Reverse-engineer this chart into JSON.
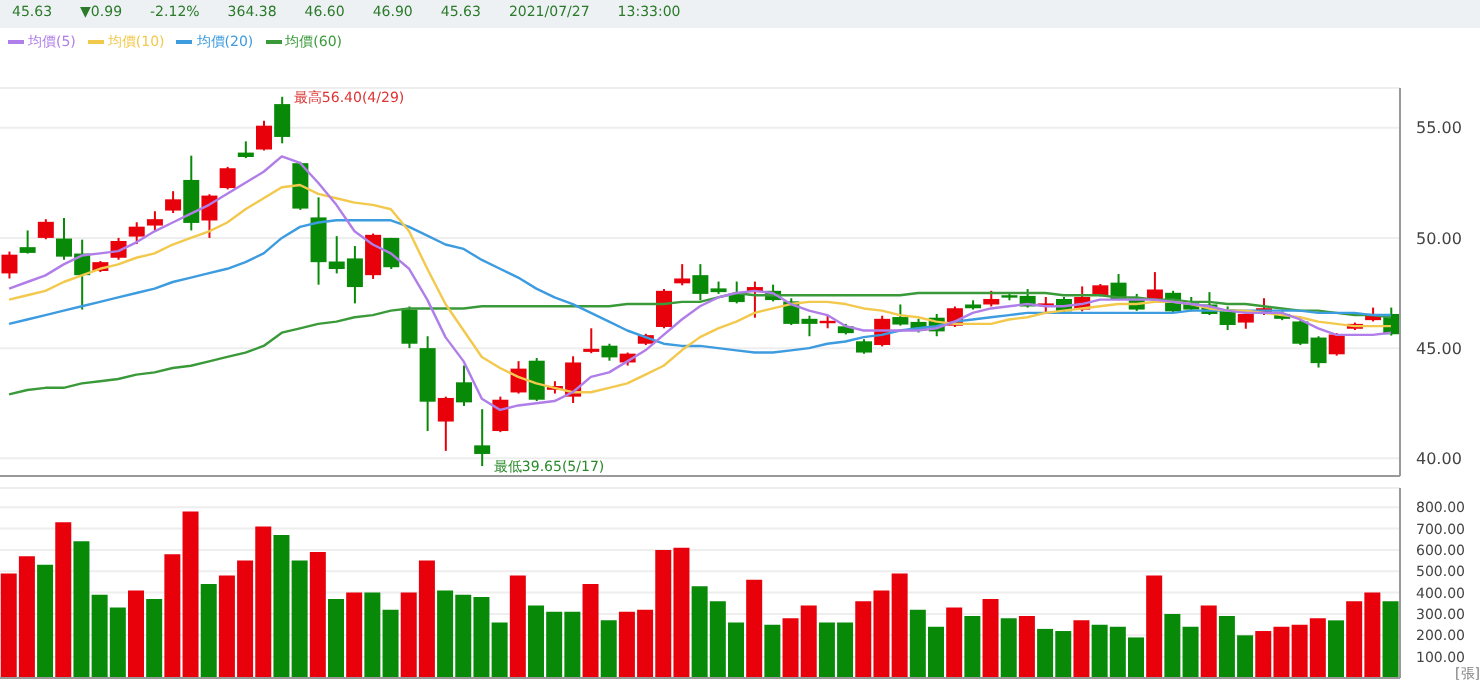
{
  "chart_data": [
    {
      "type": "candlestick",
      "categories": [
        null,
        null,
        null,
        null,
        null,
        null,
        null,
        null,
        null,
        null,
        null,
        null,
        null,
        null,
        null,
        null,
        null,
        null,
        null,
        null,
        null,
        null,
        null,
        null,
        null,
        null,
        null,
        null,
        null,
        null,
        null,
        null,
        null,
        null,
        null,
        null,
        null,
        null,
        null,
        null,
        null,
        null,
        null,
        null,
        null,
        null,
        null,
        null,
        null,
        null,
        null,
        null,
        null,
        null,
        null,
        null,
        null,
        null,
        null,
        null,
        null,
        null,
        null,
        null,
        null,
        null,
        null,
        null,
        null,
        null,
        null,
        null,
        null,
        null,
        null,
        null,
        null
      ],
      "ohlc": [
        [
          48.39,
          49.38,
          48.16,
          49.24
        ],
        [
          49.58,
          50.34,
          49.29,
          49.32
        ],
        [
          50.0,
          50.85,
          49.94,
          50.73
        ],
        [
          49.97,
          50.9,
          49.01,
          49.15
        ],
        [
          49.29,
          49.92,
          46.75,
          48.31
        ],
        [
          48.5,
          48.95,
          48.45,
          48.9
        ],
        [
          49.1,
          50.0,
          49.01,
          49.86
        ],
        [
          50.06,
          50.71,
          49.72,
          50.51
        ],
        [
          50.56,
          51.21,
          50.34,
          50.85
        ],
        [
          51.24,
          52.12,
          51.13,
          51.75
        ],
        [
          52.63,
          53.73,
          50.34,
          50.68
        ],
        [
          50.79,
          51.98,
          50.0,
          51.92
        ],
        [
          52.26,
          53.22,
          52.2,
          53.16
        ],
        [
          53.87,
          54.38,
          53.62,
          53.67
        ],
        [
          54.01,
          55.31,
          53.96,
          55.09
        ],
        [
          56.07,
          56.4,
          54.29,
          54.58
        ],
        [
          53.39,
          53.45,
          51.27,
          51.33
        ],
        [
          50.93,
          51.84,
          47.88,
          48.9
        ],
        [
          48.93,
          50.08,
          48.39,
          48.59
        ],
        [
          49.07,
          49.63,
          47.03,
          47.77
        ],
        [
          48.31,
          50.2,
          48.14,
          50.14
        ],
        [
          50.0,
          50.0,
          48.59,
          48.67
        ],
        [
          46.75,
          46.89,
          45.0,
          45.2
        ],
        [
          45.0,
          45.54,
          41.24,
          42.57
        ],
        [
          41.67,
          42.8,
          40.34,
          42.74
        ],
        [
          43.45,
          44.21,
          42.37,
          42.54
        ],
        [
          40.59,
          42.23,
          39.65,
          40.2
        ],
        [
          41.24,
          42.8,
          41.19,
          42.66
        ],
        [
          42.99,
          44.41,
          42.94,
          44.07
        ],
        [
          44.43,
          44.55,
          42.6,
          42.66
        ],
        [
          43.11,
          43.5,
          42.94,
          43.28
        ],
        [
          42.8,
          44.63,
          42.51,
          44.35
        ],
        [
          44.83,
          45.9,
          44.77,
          44.97
        ],
        [
          45.11,
          45.2,
          44.43,
          44.58
        ],
        [
          44.35,
          44.8,
          44.21,
          44.75
        ],
        [
          45.2,
          45.65,
          45.14,
          45.59
        ],
        [
          45.96,
          47.68,
          45.9,
          47.6
        ],
        [
          47.94,
          48.81,
          47.85,
          48.16
        ],
        [
          48.31,
          48.81,
          47.17,
          47.46
        ],
        [
          47.71,
          48.02,
          47.46,
          47.54
        ],
        [
          47.46,
          48.02,
          47.03,
          47.09
        ],
        [
          47.54,
          48.02,
          46.38,
          47.77
        ],
        [
          47.6,
          47.88,
          47.12,
          47.18
        ],
        [
          47.12,
          47.26,
          46.05,
          46.1
        ],
        [
          46.33,
          46.47,
          45.54,
          46.1
        ],
        [
          46.13,
          46.47,
          45.9,
          46.24
        ],
        [
          45.99,
          46.1,
          45.62,
          45.68
        ],
        [
          45.31,
          45.4,
          44.75,
          44.8
        ],
        [
          45.14,
          46.47,
          45.08,
          46.33
        ],
        [
          46.41,
          46.98,
          46.02,
          46.07
        ],
        [
          46.19,
          46.33,
          45.71,
          45.79
        ],
        [
          46.38,
          46.55,
          45.54,
          45.76
        ],
        [
          46.02,
          46.89,
          45.96,
          46.81
        ],
        [
          46.98,
          47.17,
          46.75,
          46.81
        ],
        [
          46.98,
          47.6,
          46.89,
          47.23
        ],
        [
          47.4,
          47.51,
          47.17,
          47.29
        ],
        [
          47.37,
          47.68,
          46.84,
          46.89
        ],
        [
          46.98,
          47.32,
          46.61,
          47.03
        ],
        [
          47.23,
          47.32,
          46.61,
          46.67
        ],
        [
          46.75,
          47.8,
          46.67,
          47.32
        ],
        [
          47.4,
          47.91,
          47.35,
          47.85
        ],
        [
          47.97,
          48.36,
          47.17,
          47.23
        ],
        [
          47.26,
          47.46,
          46.69,
          46.75
        ],
        [
          47.23,
          48.45,
          47.17,
          47.66
        ],
        [
          47.51,
          47.6,
          46.61,
          46.67
        ],
        [
          47.03,
          47.32,
          46.67,
          46.75
        ],
        [
          46.98,
          47.54,
          46.5,
          46.55
        ],
        [
          46.75,
          46.89,
          45.82,
          46.05
        ],
        [
          46.16,
          46.69,
          45.88,
          46.55
        ],
        [
          46.55,
          47.26,
          46.5,
          46.81
        ],
        [
          46.55,
          46.67,
          46.27,
          46.33
        ],
        [
          46.21,
          46.27,
          45.14,
          45.2
        ],
        [
          45.48,
          45.54,
          44.12,
          44.32
        ],
        [
          44.72,
          45.68,
          44.66,
          45.62
        ],
        [
          45.88,
          46.16,
          45.82,
          46.1
        ],
        [
          46.27,
          46.84,
          46.21,
          46.55
        ],
        [
          46.55,
          46.84,
          45.57,
          45.63
        ]
      ],
      "series": [
        {
          "name": "均價(5)",
          "type": "line",
          "color": "#b07ee8",
          "values": [
            47.7,
            48.0,
            48.3,
            48.8,
            49.2,
            49.3,
            49.4,
            49.8,
            50.3,
            50.7,
            51.1,
            51.5,
            52.0,
            52.5,
            53.0,
            53.7,
            53.4,
            52.5,
            51.5,
            50.3,
            49.7,
            49.3,
            48.6,
            47.2,
            45.5,
            44.4,
            42.7,
            42.2,
            42.4,
            42.5,
            42.6,
            43.0,
            43.7,
            43.9,
            44.4,
            44.9,
            45.6,
            46.3,
            46.9,
            47.3,
            47.5,
            47.6,
            47.5,
            47.0,
            46.7,
            46.5,
            46.0,
            45.8,
            45.8,
            45.8,
            45.8,
            45.9,
            46.2,
            46.6,
            46.8,
            46.9,
            47.0,
            46.9,
            46.9,
            47.0,
            47.2,
            47.2,
            47.2,
            47.2,
            47.1,
            47.0,
            46.9,
            46.7,
            46.6,
            46.6,
            46.6,
            46.3,
            45.9,
            45.6,
            45.6,
            45.6,
            45.7
          ]
        },
        {
          "name": "均價(10)",
          "type": "line",
          "color": "#f2c94c",
          "values": [
            47.2,
            47.4,
            47.6,
            48.0,
            48.3,
            48.6,
            48.8,
            49.1,
            49.3,
            49.7,
            50.0,
            50.3,
            50.7,
            51.3,
            51.8,
            52.3,
            52.4,
            52.0,
            51.8,
            51.6,
            51.5,
            51.3,
            50.3,
            48.6,
            47.0,
            45.8,
            44.6,
            44.1,
            43.7,
            43.4,
            43.2,
            43.0,
            43.0,
            43.2,
            43.4,
            43.8,
            44.2,
            44.9,
            45.5,
            45.9,
            46.2,
            46.6,
            46.8,
            47.0,
            47.1,
            47.1,
            47.0,
            46.8,
            46.7,
            46.5,
            46.4,
            46.2,
            46.1,
            46.1,
            46.1,
            46.3,
            46.4,
            46.6,
            46.7,
            46.8,
            46.9,
            47.0,
            47.0,
            47.1,
            47.1,
            47.0,
            46.8,
            46.7,
            46.7,
            46.6,
            46.5,
            46.4,
            46.2,
            46.1,
            46.0,
            46.0,
            46.0
          ]
        },
        {
          "name": "均價(20)",
          "type": "line",
          "color": "#3d9be0",
          "values": [
            46.1,
            46.3,
            46.5,
            46.7,
            46.9,
            47.1,
            47.3,
            47.5,
            47.7,
            48.0,
            48.2,
            48.4,
            48.6,
            48.9,
            49.3,
            50.0,
            50.5,
            50.7,
            50.8,
            50.8,
            50.8,
            50.8,
            50.5,
            50.1,
            49.7,
            49.5,
            49.0,
            48.6,
            48.2,
            47.7,
            47.3,
            47.0,
            46.6,
            46.2,
            45.8,
            45.5,
            45.2,
            45.1,
            45.1,
            45.0,
            44.9,
            44.8,
            44.8,
            44.9,
            45.0,
            45.2,
            45.3,
            45.5,
            45.6,
            45.8,
            45.9,
            46.0,
            46.2,
            46.3,
            46.4,
            46.5,
            46.6,
            46.6,
            46.6,
            46.6,
            46.6,
            46.6,
            46.6,
            46.6,
            46.6,
            46.7,
            46.7,
            46.7,
            46.7,
            46.7,
            46.7,
            46.7,
            46.6,
            46.6,
            46.6,
            46.5,
            46.5
          ]
        },
        {
          "name": "均價(60)",
          "type": "line",
          "color": "#3a9a3a",
          "values": [
            42.9,
            43.1,
            43.2,
            43.2,
            43.4,
            43.5,
            43.6,
            43.8,
            43.9,
            44.1,
            44.2,
            44.4,
            44.6,
            44.8,
            45.1,
            45.7,
            45.9,
            46.1,
            46.2,
            46.4,
            46.5,
            46.7,
            46.8,
            46.8,
            46.8,
            46.8,
            46.9,
            46.9,
            46.9,
            46.9,
            46.9,
            46.9,
            46.9,
            46.9,
            47.0,
            47.0,
            47.0,
            47.1,
            47.1,
            47.3,
            47.5,
            47.4,
            47.4,
            47.4,
            47.4,
            47.4,
            47.4,
            47.4,
            47.4,
            47.4,
            47.5,
            47.5,
            47.5,
            47.5,
            47.5,
            47.5,
            47.5,
            47.5,
            47.4,
            47.4,
            47.4,
            47.3,
            47.3,
            47.2,
            47.2,
            47.1,
            47.1,
            47.0,
            47.0,
            46.9,
            46.8,
            46.7,
            46.7,
            46.6,
            46.5,
            46.5,
            46.4
          ]
        }
      ],
      "ylim": [
        39.2,
        56.8
      ],
      "yticks": [
        {
          "value": 40,
          "label": "40.00"
        },
        {
          "value": 45,
          "label": "45.00"
        },
        {
          "value": 50,
          "label": "50.00"
        },
        {
          "value": 55,
          "label": "55.00"
        }
      ],
      "grid": "y",
      "legend": "top left",
      "tick_labels": "y",
      "annotations": [
        "最高56.40(4/29)",
        "最低39.65(5/17)",
        "45.63",
        "▼0.99",
        "-2.12%",
        "364.38",
        "46.60",
        "46.90",
        "45.63",
        "2021/07/27",
        "13:33:00"
      ]
    },
    {
      "type": "bar",
      "categories": [
        null,
        null,
        null,
        null,
        null,
        null,
        null,
        null,
        null,
        null,
        null,
        null,
        null,
        null,
        null,
        null,
        null,
        null,
        null,
        null,
        null,
        null,
        null,
        null,
        null,
        null,
        null,
        null,
        null,
        null,
        null,
        null,
        null,
        null,
        null,
        null,
        null,
        null,
        null,
        null,
        null,
        null,
        null,
        null,
        null,
        null,
        null,
        null,
        null,
        null,
        null,
        null,
        null,
        null,
        null,
        null,
        null,
        null,
        null,
        null,
        null,
        null,
        null,
        null,
        null,
        null,
        null,
        null,
        null,
        null,
        null,
        null,
        null,
        null,
        null,
        null,
        null
      ],
      "values": [
        490,
        570,
        530,
        730,
        640,
        390,
        330,
        410,
        370,
        580,
        780,
        440,
        480,
        550,
        710,
        670,
        550,
        590,
        370,
        400,
        400,
        320,
        400,
        550,
        410,
        390,
        380,
        260,
        480,
        340,
        310,
        310,
        440,
        270,
        310,
        320,
        600,
        610,
        430,
        360,
        260,
        460,
        250,
        280,
        340,
        260,
        260,
        360,
        410,
        490,
        320,
        240,
        330,
        290,
        370,
        280,
        290,
        230,
        220,
        270,
        250,
        240,
        190,
        480,
        300,
        240,
        340,
        290,
        200,
        220,
        240,
        250,
        280,
        270,
        360,
        400,
        360
      ],
      "colors": [
        "#e8000b",
        "#e8000b",
        "#088a08",
        "#e8000b",
        "#088a08",
        "#088a08",
        "#088a08",
        "#e8000b",
        "#088a08",
        "#e8000b",
        "#e8000b",
        "#088a08",
        "#e8000b",
        "#e8000b",
        "#e8000b",
        "#088a08",
        "#088a08",
        "#e8000b",
        "#088a08",
        "#e8000b",
        "#088a08",
        "#088a08",
        "#e8000b",
        "#e8000b",
        "#088a08",
        "#088a08",
        "#088a08",
        "#088a08",
        "#e8000b",
        "#088a08",
        "#088a08",
        "#088a08",
        "#e8000b",
        "#088a08",
        "#e8000b",
        "#e8000b",
        "#e8000b",
        "#e8000b",
        "#088a08",
        "#088a08",
        "#088a08",
        "#e8000b",
        "#088a08",
        "#e8000b",
        "#e8000b",
        "#088a08",
        "#088a08",
        "#e8000b",
        "#e8000b",
        "#e8000b",
        "#088a08",
        "#088a08",
        "#e8000b",
        "#088a08",
        "#e8000b",
        "#088a08",
        "#e8000b",
        "#088a08",
        "#088a08",
        "#e8000b",
        "#088a08",
        "#088a08",
        "#088a08",
        "#e8000b",
        "#088a08",
        "#088a08",
        "#e8000b",
        "#088a08",
        "#088a08",
        "#e8000b",
        "#e8000b",
        "#e8000b",
        "#e8000b",
        "#088a08",
        "#e8000b",
        "#e8000b",
        "#088a08"
      ],
      "ylim": [
        0,
        890
      ],
      "yticks": [
        {
          "value": 100,
          "label": "100.00"
        },
        {
          "value": 200,
          "label": "200.00"
        },
        {
          "value": 300,
          "label": "300.00"
        },
        {
          "value": 400,
          "label": "400.00"
        },
        {
          "value": 500,
          "label": "500.00"
        },
        {
          "value": 600,
          "label": "600.00"
        },
        {
          "value": 700,
          "label": "700.00"
        },
        {
          "value": 800,
          "label": "800.00"
        }
      ],
      "grid": "y",
      "tick_labels": "y",
      "ylabel": "[張]"
    }
  ]
}
